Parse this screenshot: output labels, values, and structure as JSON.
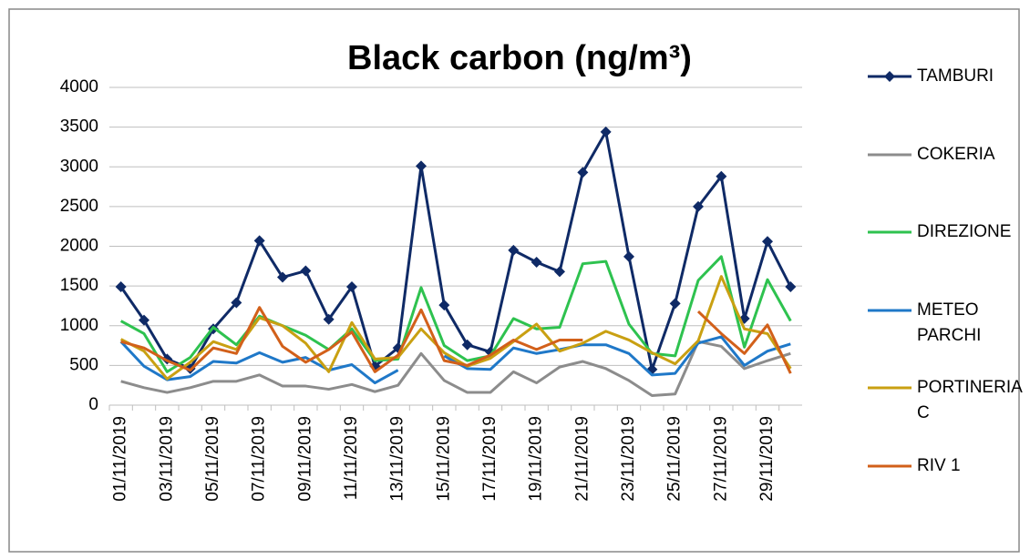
{
  "chart_data": {
    "type": "line",
    "title": "Black carbon  (ng/m³)",
    "categories": [
      "01/11/2019",
      null,
      "03/11/2019",
      null,
      "05/11/2019",
      null,
      "07/11/2019",
      null,
      "09/11/2019",
      null,
      "11/11/2019",
      null,
      "13/11/2019",
      null,
      "15/11/2019",
      null,
      "17/11/2019",
      null,
      "19/11/2019",
      null,
      "21/11/2019",
      null,
      "23/11/2019",
      null,
      "25/11/2019",
      null,
      "27/11/2019",
      null,
      "29/11/2019",
      null
    ],
    "series": [
      {
        "name": "TAMBURI",
        "color": "#0f2a66",
        "marker": "diamond",
        "values": [
          1490,
          1070,
          580,
          460,
          960,
          1290,
          2070,
          1610,
          1690,
          1080,
          1490,
          490,
          720,
          3010,
          1260,
          760,
          670,
          1950,
          1800,
          1680,
          2930,
          3440,
          1870,
          450,
          1280,
          2500,
          2880,
          1090,
          2060,
          1490
        ]
      },
      {
        "name": "COKERIA",
        "color": "#8c8c8c",
        "values": [
          300,
          220,
          160,
          220,
          300,
          300,
          380,
          240,
          240,
          200,
          260,
          170,
          250,
          650,
          310,
          160,
          160,
          420,
          280,
          480,
          550,
          460,
          310,
          120,
          140,
          800,
          740,
          460,
          560,
          650
        ]
      },
      {
        "name": "DIREZIONE",
        "color": "#2ec24f",
        "values": [
          1060,
          900,
          420,
          600,
          980,
          760,
          1120,
          1000,
          880,
          700,
          960,
          560,
          580,
          1480,
          750,
          560,
          620,
          1090,
          960,
          980,
          1780,
          1810,
          1020,
          650,
          620,
          1570,
          1870,
          730,
          1580,
          1060
        ]
      },
      {
        "name": "METEO PARCHI",
        "color": "#1f78c8",
        "values": [
          800,
          490,
          320,
          360,
          550,
          530,
          660,
          540,
          600,
          440,
          510,
          280,
          440,
          null,
          620,
          460,
          450,
          720,
          650,
          700,
          760,
          760,
          650,
          380,
          400,
          780,
          860,
          500,
          680,
          770
        ]
      },
      {
        "name": "PORTINERIA C",
        "color": "#c9a012",
        "values": [
          830,
          680,
          330,
          540,
          800,
          700,
          1100,
          1000,
          780,
          420,
          1040,
          580,
          600,
          960,
          660,
          490,
          590,
          800,
          1020,
          680,
          780,
          930,
          820,
          660,
          520,
          810,
          1620,
          960,
          900,
          460
        ]
      },
      {
        "name": "RIV 1",
        "color": "#d2601a",
        "values": [
          800,
          720,
          560,
          440,
          720,
          650,
          1230,
          740,
          540,
          700,
          920,
          420,
          630,
          1200,
          560,
          500,
          630,
          820,
          700,
          820,
          820,
          null,
          null,
          null,
          null,
          1180,
          900,
          650,
          1010,
          400
        ]
      }
    ],
    "ylim": [
      0,
      4000
    ],
    "yticks": [
      0,
      500,
      1000,
      1500,
      2000,
      2500,
      3000,
      3500,
      4000
    ],
    "grid": true
  }
}
